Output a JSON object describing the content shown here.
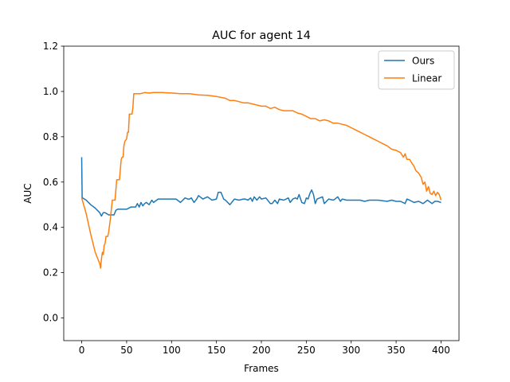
{
  "chart_data": {
    "type": "line",
    "title": "AUC for agent 14",
    "xlabel": "Frames",
    "ylabel": "AUC",
    "xlim": [
      -20,
      420
    ],
    "ylim": [
      -0.1,
      1.2
    ],
    "xticks": [
      0,
      50,
      100,
      150,
      200,
      250,
      300,
      350,
      400
    ],
    "yticks": [
      0.0,
      0.2,
      0.4,
      0.6,
      0.8,
      1.0,
      1.2
    ],
    "xtick_labels": [
      "0",
      "50",
      "100",
      "150",
      "200",
      "250",
      "300",
      "350",
      "400"
    ],
    "ytick_labels": [
      "0.0",
      "0.2",
      "0.4",
      "0.6",
      "0.8",
      "1.0",
      "1.2"
    ],
    "legend_position": "top-right",
    "grid": false,
    "series": [
      {
        "name": "Ours",
        "color": "#1f77b4",
        "x": [
          0,
          0.5,
          1,
          5,
          10,
          15,
          20,
          22,
          24,
          26,
          28,
          30,
          33,
          36,
          38,
          40,
          45,
          50,
          55,
          60,
          62,
          64,
          66,
          68,
          70,
          72,
          75,
          78,
          80,
          85,
          90,
          95,
          100,
          105,
          110,
          115,
          118,
          120,
          122,
          125,
          128,
          130,
          135,
          140,
          145,
          150,
          152,
          155,
          158,
          160,
          165,
          170,
          175,
          180,
          182,
          185,
          188,
          190,
          192,
          195,
          198,
          200,
          205,
          210,
          212,
          215,
          218,
          220,
          225,
          230,
          232,
          235,
          238,
          240,
          242,
          245,
          248,
          250,
          252,
          254,
          256,
          258,
          260,
          262,
          265,
          268,
          270,
          275,
          280,
          282,
          285,
          288,
          290,
          295,
          300,
          305,
          310,
          315,
          320,
          325,
          330,
          340,
          345,
          350,
          355,
          360,
          362,
          365,
          370,
          375,
          380,
          385,
          390,
          393,
          396,
          400
        ],
        "y": [
          0.71,
          0.53,
          0.53,
          0.52,
          0.5,
          0.485,
          0.465,
          0.45,
          0.465,
          0.465,
          0.46,
          0.455,
          0.455,
          0.455,
          0.475,
          0.48,
          0.48,
          0.48,
          0.49,
          0.49,
          0.505,
          0.49,
          0.51,
          0.495,
          0.505,
          0.51,
          0.5,
          0.52,
          0.51,
          0.525,
          0.525,
          0.525,
          0.525,
          0.525,
          0.51,
          0.53,
          0.525,
          0.525,
          0.53,
          0.51,
          0.525,
          0.54,
          0.525,
          0.535,
          0.52,
          0.525,
          0.555,
          0.555,
          0.525,
          0.52,
          0.5,
          0.525,
          0.52,
          0.525,
          0.525,
          0.52,
          0.53,
          0.515,
          0.535,
          0.52,
          0.535,
          0.525,
          0.53,
          0.505,
          0.505,
          0.52,
          0.505,
          0.525,
          0.52,
          0.53,
          0.51,
          0.525,
          0.53,
          0.525,
          0.545,
          0.51,
          0.505,
          0.53,
          0.525,
          0.55,
          0.565,
          0.545,
          0.505,
          0.525,
          0.53,
          0.535,
          0.505,
          0.525,
          0.52,
          0.525,
          0.535,
          0.515,
          0.525,
          0.52,
          0.52,
          0.52,
          0.52,
          0.515,
          0.52,
          0.52,
          0.52,
          0.515,
          0.52,
          0.515,
          0.515,
          0.505,
          0.525,
          0.52,
          0.51,
          0.515,
          0.505,
          0.52,
          0.505,
          0.515,
          0.515,
          0.51
        ]
      },
      {
        "name": "Linear",
        "color": "#ff7f0e",
        "x": [
          0,
          5,
          10,
          15,
          20,
          21,
          22,
          23,
          24,
          25,
          26,
          27,
          28,
          29,
          30,
          32,
          34,
          35,
          37,
          39,
          40,
          42,
          44,
          45,
          46,
          47,
          48,
          50,
          51,
          52,
          53,
          54,
          55,
          56,
          57,
          58,
          60,
          65,
          70,
          75,
          80,
          85,
          90,
          95,
          100,
          110,
          120,
          130,
          140,
          150,
          160,
          165,
          170,
          175,
          180,
          185,
          190,
          195,
          200,
          205,
          210,
          215,
          220,
          225,
          230,
          235,
          240,
          245,
          250,
          255,
          260,
          265,
          270,
          275,
          280,
          285,
          290,
          295,
          300,
          305,
          310,
          315,
          320,
          325,
          330,
          335,
          340,
          345,
          350,
          355,
          358,
          360,
          362,
          365,
          368,
          370,
          372,
          375,
          378,
          380,
          382,
          384,
          386,
          388,
          390,
          392,
          394,
          396,
          398,
          400
        ],
        "y": [
          0.53,
          0.46,
          0.37,
          0.29,
          0.24,
          0.22,
          0.26,
          0.29,
          0.28,
          0.32,
          0.33,
          0.36,
          0.36,
          0.36,
          0.38,
          0.44,
          0.52,
          0.52,
          0.52,
          0.61,
          0.61,
          0.61,
          0.7,
          0.71,
          0.71,
          0.76,
          0.78,
          0.79,
          0.82,
          0.82,
          0.9,
          0.9,
          0.9,
          0.9,
          0.93,
          0.99,
          0.99,
          0.99,
          0.995,
          0.993,
          0.995,
          0.995,
          0.995,
          0.994,
          0.993,
          0.99,
          0.99,
          0.985,
          0.983,
          0.978,
          0.97,
          0.96,
          0.96,
          0.955,
          0.95,
          0.95,
          0.945,
          0.94,
          0.935,
          0.935,
          0.925,
          0.93,
          0.92,
          0.915,
          0.915,
          0.915,
          0.905,
          0.9,
          0.89,
          0.88,
          0.88,
          0.87,
          0.875,
          0.87,
          0.86,
          0.86,
          0.855,
          0.85,
          0.84,
          0.83,
          0.82,
          0.81,
          0.8,
          0.79,
          0.78,
          0.77,
          0.76,
          0.745,
          0.74,
          0.73,
          0.71,
          0.725,
          0.7,
          0.7,
          0.68,
          0.67,
          0.65,
          0.64,
          0.62,
          0.59,
          0.6,
          0.56,
          0.58,
          0.55,
          0.545,
          0.56,
          0.54,
          0.555,
          0.545,
          0.52
        ]
      }
    ]
  }
}
